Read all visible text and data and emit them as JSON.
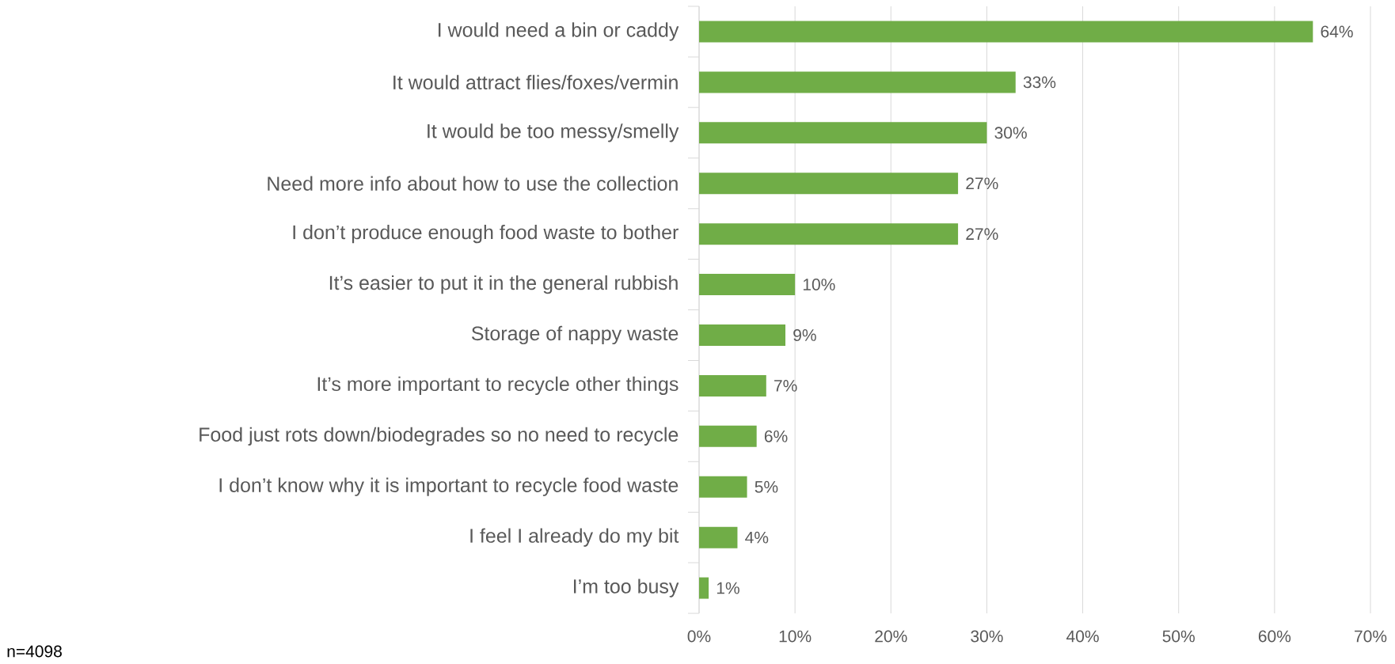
{
  "chart_data": {
    "type": "bar",
    "orientation": "horizontal",
    "categories": [
      "I would need a bin or caddy",
      "It would attract flies/foxes/vermin",
      "It would be too messy/smelly",
      "Need more info about how to use the collection",
      "I don’t produce enough food waste to bother",
      "It’s easier to put it in the general rubbish",
      "Storage of nappy waste",
      "It’s more important to recycle other things",
      "Food just rots down/biodegrades so no need to recycle",
      "I don’t know why it is important to recycle food waste",
      "I feel I already do my bit",
      "I’m too busy"
    ],
    "values": [
      64,
      33,
      30,
      27,
      27,
      10,
      9,
      7,
      6,
      5,
      4,
      1
    ],
    "value_labels": [
      "64%",
      "33%",
      "30%",
      "27%",
      "27%",
      "10%",
      "9%",
      "7%",
      "6%",
      "5%",
      "4%",
      "1%"
    ],
    "color": "#70ad47",
    "xlim": [
      0,
      70
    ],
    "xticks": [
      {
        "value": 0,
        "label": "0%"
      },
      {
        "value": 10,
        "label": "10%"
      },
      {
        "value": 20,
        "label": "20%"
      },
      {
        "value": 30,
        "label": "30%"
      },
      {
        "value": 40,
        "label": "40%"
      },
      {
        "value": 50,
        "label": "50%"
      },
      {
        "value": 60,
        "label": "60%"
      },
      {
        "value": 70,
        "label": "70%"
      }
    ],
    "grid": "x",
    "annotations": [
      "n=4098"
    ]
  }
}
